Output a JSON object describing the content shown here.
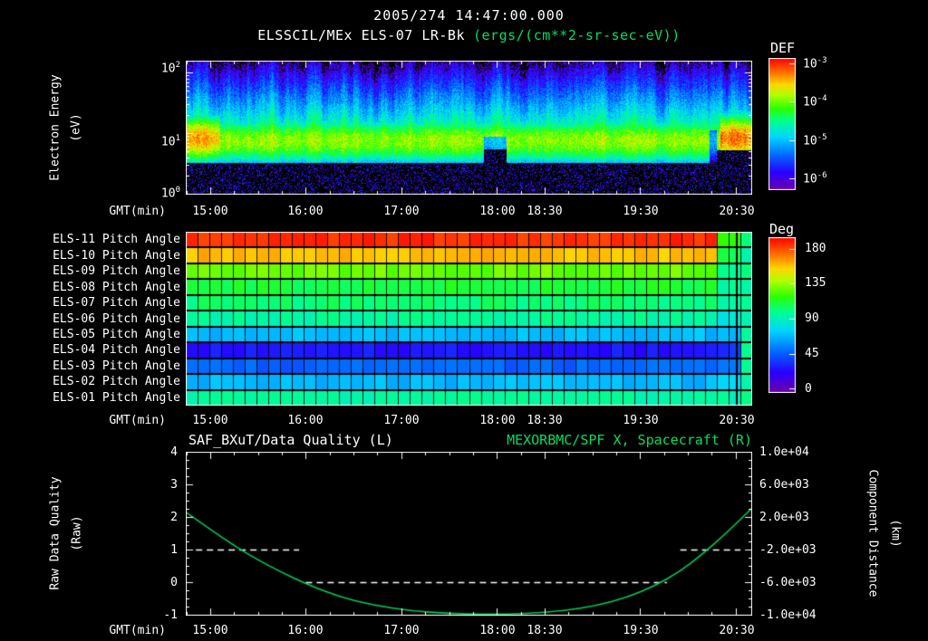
{
  "header": {
    "date_line": "2005/274 14:47:00.000",
    "title_main": "ELSSCIL/MEx ELS-07 LR-Bk",
    "title_units": "(ergs/(cm**2-sr-sec-eV))"
  },
  "colors": {
    "background": "#000000",
    "text": "#ffffff",
    "green_text": "#00df5f",
    "curve_green": "#00cc55"
  },
  "time_axis": {
    "label": "GMT(min)",
    "t_start": 14.744,
    "t_end": 20.663,
    "ticks": [
      {
        "label": "15:00",
        "t": 15.0
      },
      {
        "label": "16:00",
        "t": 16.0
      },
      {
        "label": "17:00",
        "t": 17.0
      },
      {
        "label": "18:00",
        "t": 18.0
      },
      {
        "label": "18:30",
        "t": 18.5
      },
      {
        "label": "19:30",
        "t": 19.5
      },
      {
        "label": "20:30",
        "t": 20.5
      }
    ]
  },
  "chart_data": [
    {
      "id": "electron-spectrogram",
      "type": "heatmap",
      "title": "ELSSCIL/MEx ELS-07 LR-Bk",
      "subtitle": "2005/274 14:47:00.000",
      "units": "ergs/(cm**2-sr-sec-eV)",
      "xlabel": "GMT(min)",
      "x_range_hours": [
        14.744,
        20.663
      ],
      "ylabel_lines": [
        "Electron Energy",
        "(eV)"
      ],
      "y_scale": "log",
      "y_range_eV": [
        1,
        158
      ],
      "y_ticks": [
        {
          "base": "10",
          "exp": "2"
        },
        {
          "base": "10",
          "exp": "1"
        },
        {
          "base": "10",
          "exp": "0"
        }
      ],
      "colorbar": {
        "title": "DEF",
        "scale": "log",
        "range_log10": [
          -6.3,
          -2.9
        ],
        "ticks": [
          {
            "base": "10",
            "exp": "-3"
          },
          {
            "base": "10",
            "exp": "-4"
          },
          {
            "base": "10",
            "exp": "-5"
          },
          {
            "base": "10",
            "exp": "-6"
          }
        ]
      },
      "features": {
        "main_band": {
          "log10_center_eV": 0.88,
          "log10_sigma": 0.34,
          "peak_log10_flux": -3.95
        },
        "upper_layer": {
          "log10_flux_at_12eV": -4.5,
          "slope_per_decade": -1.5
        },
        "low_energy_cutoff_log10": 0.52,
        "enhancements": [
          {
            "t0": 14.744,
            "t1": 15.1,
            "extra_log10": 0.55,
            "note": "bright yellow patch at start"
          },
          {
            "t0": 20.34,
            "t1": 20.663,
            "extra_log10": 0.75,
            "note": "bright yellow patch at end"
          }
        ],
        "dropout": {
          "t0": 17.86,
          "t1": 18.1,
          "note": "band narrows near 18:00"
        },
        "gap": {
          "t0": 20.22,
          "t1": 20.3,
          "note": "dim column before end enhancement"
        }
      }
    },
    {
      "id": "pitch-angle-panel",
      "type": "heatmap",
      "xlabel": "GMT(min)",
      "colorbar": {
        "title": "Deg",
        "range": [
          0,
          180
        ],
        "ticks": [
          "180",
          "135",
          "90",
          "45",
          "0"
        ]
      },
      "rows": [
        {
          "label": "ELS-11 Pitch Angle",
          "value_deg": 172,
          "value_end_deg": 108
        },
        {
          "label": "ELS-10 Pitch Angle",
          "value_deg": 148,
          "value_end_deg": 100
        },
        {
          "label": "ELS-09 Pitch Angle",
          "value_deg": 120,
          "value_end_deg": 95
        },
        {
          "label": "ELS-08 Pitch Angle",
          "value_deg": 104,
          "value_end_deg": 90
        },
        {
          "label": "ELS-07 Pitch Angle",
          "value_deg": 97,
          "value_end_deg": 88
        },
        {
          "label": "ELS-06 Pitch Angle",
          "value_deg": 91,
          "value_end_deg": 82
        },
        {
          "label": "ELS-05 Pitch Angle",
          "value_deg": 66,
          "value_end_deg": 66
        },
        {
          "label": "ELS-04 Pitch Angle",
          "value_deg": 28,
          "value_end_deg": 35
        },
        {
          "label": "ELS-03 Pitch Angle",
          "value_deg": 46,
          "value_end_deg": 50
        },
        {
          "label": "ELS-02 Pitch Angle",
          "value_deg": 65,
          "value_end_deg": 70
        },
        {
          "label": "ELS-01 Pitch Angle",
          "value_deg": 90,
          "value_end_deg": 88
        }
      ],
      "end_section_start_frac": 0.932,
      "edge_column": {
        "start_frac": 0.975,
        "value_deg": 92
      },
      "grid_columns": 48
    },
    {
      "id": "quality-distance-plot",
      "type": "line",
      "title_left": "SAF_BXuT/Data Quality (L)",
      "title_right": "MEXORBMC/SPF X, Spacecraft (R)",
      "xlabel": "GMT(min)",
      "ylabel_left_lines": [
        "Raw Data Quality",
        "(Raw)"
      ],
      "ylabel_right_lines": [
        "Component Distance",
        "(km)"
      ],
      "y_left_range": [
        -1,
        4
      ],
      "y_right_range": [
        -10000,
        10000
      ],
      "y_left_ticks": [
        "4",
        "3",
        "2",
        "1",
        "0",
        "-1"
      ],
      "y_right_ticks": [
        "1.0e+04",
        "6.0e+03",
        "2.0e+03",
        "-2.0e+03",
        "-6.0e+03",
        "-1.0e+04"
      ],
      "series": [
        {
          "name": "MEXORBMC/SPF X Spacecraft distance",
          "axis": "right",
          "color": "#00cc55",
          "style": "solid",
          "points_t_raw": [
            [
              14.744,
              2.15
            ],
            [
              15.0,
              1.62
            ],
            [
              15.25,
              1.12
            ],
            [
              15.5,
              0.68
            ],
            [
              15.75,
              0.3
            ],
            [
              16.0,
              -0.05
            ],
            [
              16.35,
              -0.45
            ],
            [
              16.7,
              -0.7
            ],
            [
              17.1,
              -0.88
            ],
            [
              17.5,
              -0.96
            ],
            [
              17.9,
              -0.99
            ],
            [
              18.3,
              -0.97
            ],
            [
              18.7,
              -0.88
            ],
            [
              19.05,
              -0.72
            ],
            [
              19.35,
              -0.48
            ],
            [
              19.65,
              -0.12
            ],
            [
              19.9,
              0.3
            ],
            [
              20.15,
              0.85
            ],
            [
              20.4,
              1.5
            ],
            [
              20.663,
              2.25
            ]
          ]
        },
        {
          "name": "SAF_BXuT Data Quality",
          "axis": "left",
          "color": "#ffffff",
          "style": "dashed",
          "segments": [
            {
              "t0": 14.85,
              "t1": 15.93,
              "value": 1
            },
            {
              "t0": 16.0,
              "t1": 19.78,
              "value": 0
            },
            {
              "t0": 19.92,
              "t1": 20.55,
              "value": 1
            }
          ]
        }
      ]
    }
  ]
}
